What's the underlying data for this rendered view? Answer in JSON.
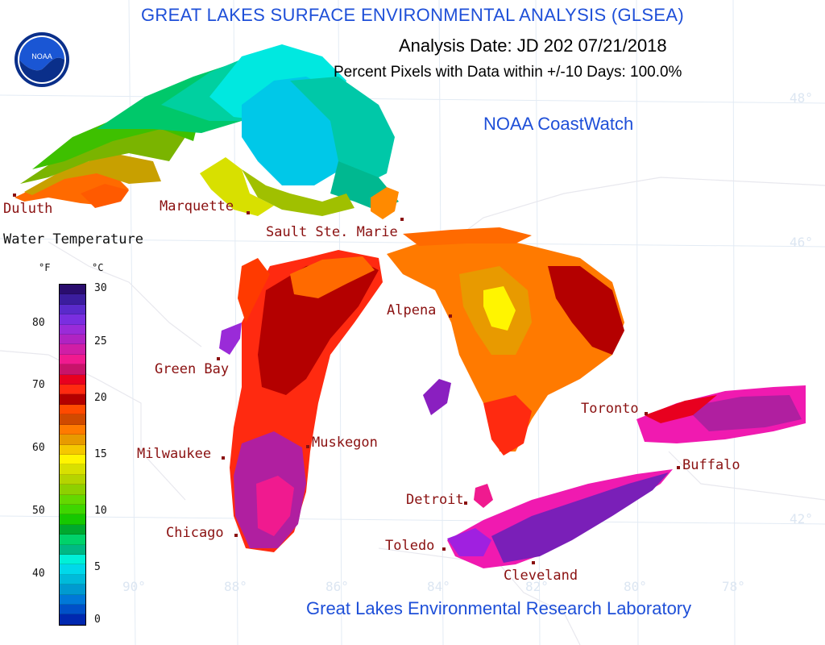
{
  "header": {
    "title": "GREAT LAKES SURFACE ENVIRONMENTAL ANALYSIS (GLSEA)",
    "analysis_date": "Analysis Date:  JD 202 07/21/2018",
    "percent_pixels": "Percent Pixels with Data within +/-10 Days: 100.0%",
    "coastwatch": "NOAA CoastWatch",
    "lab": "Great Lakes Environmental Research Laboratory",
    "logo_text": "NOAA"
  },
  "cities": [
    {
      "name": "Duluth"
    },
    {
      "name": "Marquette"
    },
    {
      "name": "Sault Ste. Marie"
    },
    {
      "name": "Alpena"
    },
    {
      "name": "Green Bay"
    },
    {
      "name": "Muskegon"
    },
    {
      "name": "Milwaukee"
    },
    {
      "name": "Chicago"
    },
    {
      "name": "Detroit"
    },
    {
      "name": "Toledo"
    },
    {
      "name": "Cleveland"
    },
    {
      "name": "Toronto"
    },
    {
      "name": "Buffalo"
    }
  ],
  "gridlines": {
    "latitudes": [
      "48°",
      "46°",
      "42°"
    ],
    "longitudes": [
      "90°",
      "88°",
      "86°",
      "84°",
      "82°",
      "80°",
      "78°"
    ]
  },
  "legend": {
    "title": "Water Temperature",
    "unit_f": "°F",
    "unit_c": "°C",
    "f_ticks": [
      "80",
      "70",
      "60",
      "50",
      "40"
    ],
    "c_ticks": [
      "30",
      "25",
      "20",
      "15",
      "10",
      "5",
      "0"
    ],
    "colors": [
      "#2a0d6e",
      "#3b1d9e",
      "#5a2acb",
      "#7a2ee0",
      "#9a2bd8",
      "#b023c2",
      "#d01ea6",
      "#f01a8f",
      "#c8136a",
      "#e8001f",
      "#ff2a10",
      "#b40000",
      "#ff4a00",
      "#d04a00",
      "#ff7a00",
      "#e89a00",
      "#f5c800",
      "#fff500",
      "#d8e000",
      "#b5d400",
      "#8ed000",
      "#64d800",
      "#3ed600",
      "#16c800",
      "#00a82e",
      "#00d26a",
      "#00b884",
      "#00f0d8",
      "#00d8ea",
      "#00bada",
      "#009ad0",
      "#0078d8",
      "#0050c8",
      "#0028b0"
    ]
  },
  "colors": {
    "title_blue": "#1e4fd8",
    "city_red": "#8a1010"
  }
}
